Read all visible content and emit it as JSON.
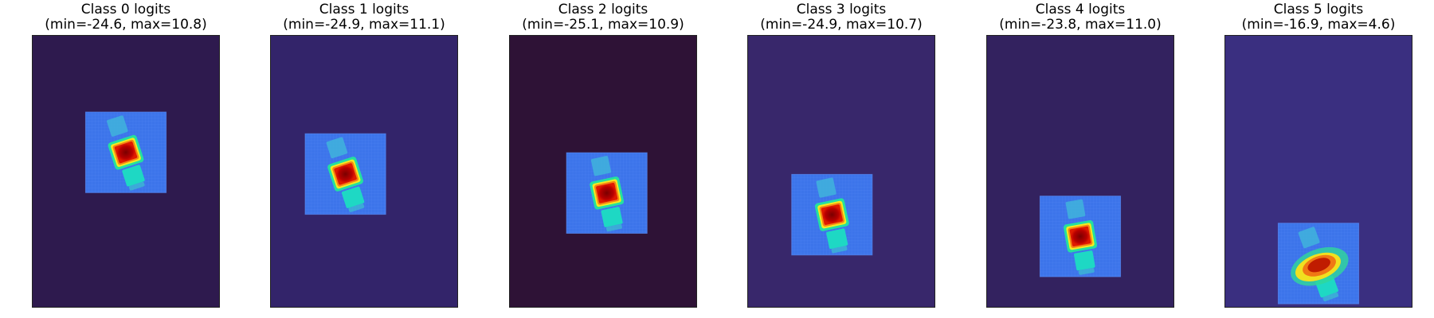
{
  "figure": {
    "panels": [
      {
        "title": "Class 0 logits",
        "subtitle": "(min=-24.6, max=10.8)",
        "background": "#2e1a4e",
        "patch_center": [
          0.5,
          0.43
        ],
        "object_angle_deg": -18,
        "blob": false
      },
      {
        "title": "Class 1 logits",
        "subtitle": "(min=-24.9, max=11.1)",
        "background": "#33246a",
        "patch_center": [
          0.4,
          0.51
        ],
        "object_angle_deg": -18,
        "blob": false
      },
      {
        "title": "Class 2 logits",
        "subtitle": "(min=-25.1, max=10.9)",
        "background": "#2e1236",
        "patch_center": [
          0.52,
          0.58
        ],
        "object_angle_deg": -12,
        "blob": false
      },
      {
        "title": "Class 3 logits",
        "subtitle": "(min=-24.9, max=10.7)",
        "background": "#38276b",
        "patch_center": [
          0.45,
          0.66
        ],
        "object_angle_deg": -12,
        "blob": false
      },
      {
        "title": "Class 4 logits",
        "subtitle": "(min=-23.8, max=11.0)",
        "background": "#33225f",
        "patch_center": [
          0.5,
          0.74
        ],
        "object_angle_deg": -10,
        "blob": false
      },
      {
        "title": "Class 5 logits",
        "subtitle": "(min=-16.9, max=4.6)",
        "background": "#3a2f80",
        "patch_center": [
          0.5,
          0.84
        ],
        "object_angle_deg": -20,
        "blob": true
      }
    ]
  }
}
